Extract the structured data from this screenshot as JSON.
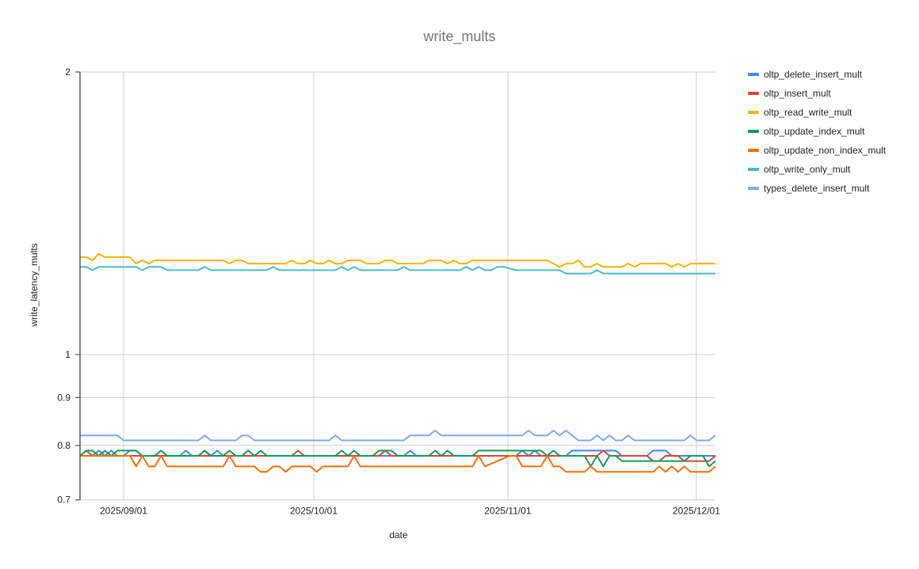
{
  "chart_data": {
    "type": "line",
    "title": "write_mults",
    "xlabel": "date",
    "ylabel": "write_latency_mults",
    "yscale": "log",
    "ylim": [
      0.7,
      2
    ],
    "yticks": [
      0.7,
      0.8,
      0.9,
      1,
      2
    ],
    "ytick_labels": [
      "0.7",
      "0.8",
      "0.9",
      "1",
      "2"
    ],
    "xticks": [
      "2025/09/01",
      "2025/10/01",
      "2025/11/01",
      "2025/12/01"
    ],
    "xrange": [
      "2025/08/25",
      "2025/12/04"
    ],
    "grid": true,
    "legend_position": "right",
    "series": [
      {
        "name": "oltp_delete_insert_mult",
        "color": "#4285f4",
        "values": [
          0.78,
          0.78,
          0.78,
          0.79,
          0.78,
          0.79,
          0.78,
          0.78,
          0.79,
          0.79,
          0.78,
          0.78,
          0.78,
          0.79,
          0.78,
          0.78,
          0.78,
          0.79,
          0.78,
          0.78,
          0.79,
          0.78,
          0.79,
          0.78,
          0.78,
          0.78,
          0.78,
          0.78,
          0.78,
          0.78,
          0.78,
          0.78,
          0.78,
          0.78,
          0.78,
          0.78,
          0.78,
          0.78,
          0.78,
          0.78,
          0.78,
          0.78,
          0.78,
          0.78,
          0.78,
          0.78,
          0.78,
          0.78,
          0.78,
          0.78,
          0.78,
          0.78,
          0.78,
          0.79,
          0.78,
          0.78,
          0.78,
          0.78,
          0.78,
          0.78,
          0.78,
          0.78,
          0.78,
          0.78,
          0.78,
          0.78,
          0.78,
          0.78,
          0.78,
          0.78,
          0.78,
          0.79,
          0.78,
          0.79,
          0.78,
          0.78,
          0.78,
          0.78,
          0.78,
          0.79,
          0.79,
          0.79,
          0.79,
          0.79,
          0.79,
          0.79,
          0.79,
          0.78,
          0.78,
          0.78,
          0.78,
          0.78,
          0.79,
          0.79,
          0.79,
          0.78,
          0.78,
          0.78,
          0.78,
          0.78,
          0.78,
          0.78,
          0.78
        ]
      },
      {
        "name": "oltp_insert_mult",
        "color": "#db4437",
        "values": [
          0.78,
          0.79,
          0.78,
          0.78,
          0.78,
          0.78,
          0.78,
          0.78,
          0.78,
          0.78,
          0.78,
          0.78,
          0.78,
          0.78,
          0.78,
          0.78,
          0.78,
          0.78,
          0.78,
          0.78,
          0.78,
          0.78,
          0.78,
          0.78,
          0.78,
          0.78,
          0.78,
          0.78,
          0.78,
          0.78,
          0.78,
          0.78,
          0.78,
          0.78,
          0.78,
          0.79,
          0.78,
          0.78,
          0.78,
          0.78,
          0.78,
          0.78,
          0.78,
          0.78,
          0.78,
          0.78,
          0.78,
          0.78,
          0.78,
          0.79,
          0.78,
          0.78,
          0.78,
          0.78,
          0.78,
          0.78,
          0.78,
          0.78,
          0.78,
          0.78,
          0.78,
          0.78,
          0.78,
          0.78,
          0.78,
          0.78,
          0.78,
          0.78,
          0.78,
          0.78,
          0.78,
          0.78,
          0.78,
          0.78,
          0.78,
          0.78,
          0.78,
          0.78,
          0.78,
          0.78,
          0.78,
          0.78,
          0.78,
          0.78,
          0.79,
          0.78,
          0.78,
          0.78,
          0.78,
          0.78,
          0.78,
          0.78,
          0.77,
          0.77,
          0.78,
          0.78,
          0.78,
          0.77,
          0.77,
          0.77,
          0.77,
          0.77,
          0.78
        ]
      },
      {
        "name": "oltp_read_write_mult",
        "color": "#f4b400",
        "values": [
          1.27,
          1.27,
          1.26,
          1.28,
          1.27,
          1.27,
          1.27,
          1.27,
          1.27,
          1.25,
          1.26,
          1.25,
          1.26,
          1.26,
          1.26,
          1.26,
          1.26,
          1.26,
          1.26,
          1.26,
          1.26,
          1.26,
          1.26,
          1.26,
          1.25,
          1.26,
          1.26,
          1.25,
          1.25,
          1.25,
          1.25,
          1.25,
          1.25,
          1.25,
          1.26,
          1.25,
          1.25,
          1.26,
          1.25,
          1.25,
          1.26,
          1.25,
          1.25,
          1.26,
          1.26,
          1.26,
          1.25,
          1.25,
          1.25,
          1.26,
          1.26,
          1.25,
          1.25,
          1.25,
          1.25,
          1.25,
          1.26,
          1.26,
          1.26,
          1.25,
          1.26,
          1.25,
          1.25,
          1.26,
          1.26,
          1.26,
          1.26,
          1.26,
          1.26,
          1.26,
          1.26,
          1.26,
          1.26,
          1.26,
          1.26,
          1.26,
          1.25,
          1.24,
          1.25,
          1.25,
          1.26,
          1.24,
          1.24,
          1.25,
          1.24,
          1.24,
          1.24,
          1.24,
          1.25,
          1.24,
          1.25,
          1.25,
          1.25,
          1.25,
          1.25,
          1.24,
          1.25,
          1.24,
          1.25,
          1.25,
          1.25,
          1.25,
          1.25
        ]
      },
      {
        "name": "oltp_update_index_mult",
        "color": "#0f9d58",
        "values": [
          0.78,
          0.79,
          0.79,
          0.78,
          0.79,
          0.78,
          0.79,
          0.79,
          0.79,
          0.79,
          0.78,
          0.78,
          0.78,
          0.79,
          0.78,
          0.78,
          0.78,
          0.78,
          0.78,
          0.78,
          0.79,
          0.78,
          0.78,
          0.78,
          0.79,
          0.78,
          0.78,
          0.79,
          0.78,
          0.79,
          0.78,
          0.78,
          0.78,
          0.78,
          0.78,
          0.78,
          0.78,
          0.78,
          0.78,
          0.78,
          0.78,
          0.78,
          0.79,
          0.78,
          0.79,
          0.78,
          0.78,
          0.78,
          0.79,
          0.79,
          0.79,
          0.78,
          0.78,
          0.78,
          0.78,
          0.78,
          0.78,
          0.79,
          0.78,
          0.79,
          0.78,
          0.78,
          0.78,
          0.78,
          0.79,
          0.79,
          0.79,
          0.79,
          0.79,
          0.79,
          0.79,
          0.79,
          0.79,
          0.79,
          0.79,
          0.78,
          0.79,
          0.78,
          0.78,
          0.78,
          0.78,
          0.78,
          0.76,
          0.78,
          0.76,
          0.78,
          0.78,
          0.77,
          0.77,
          0.77,
          0.77,
          0.77,
          0.77,
          0.77,
          0.77,
          0.77,
          0.77,
          0.77,
          0.78,
          0.78,
          0.78,
          0.76,
          0.77
        ]
      },
      {
        "name": "oltp_update_non_index_mult",
        "color": "#ff6d01",
        "values": [
          0.78,
          0.78,
          0.78,
          0.78,
          0.78,
          0.78,
          0.78,
          0.78,
          0.78,
          0.76,
          0.78,
          0.76,
          0.76,
          0.78,
          0.76,
          0.76,
          0.76,
          0.76,
          0.76,
          0.76,
          0.76,
          0.76,
          0.76,
          0.76,
          0.78,
          0.76,
          0.76,
          0.76,
          0.76,
          0.75,
          0.75,
          0.76,
          0.76,
          0.75,
          0.76,
          0.76,
          0.76,
          0.76,
          0.75,
          0.76,
          0.76,
          0.76,
          0.76,
          0.76,
          0.78,
          0.76,
          0.76,
          0.76,
          0.76,
          0.76,
          0.76,
          0.76,
          0.76,
          0.76,
          0.76,
          0.76,
          0.76,
          0.76,
          0.76,
          0.76,
          0.76,
          0.76,
          0.76,
          0.76,
          0.78,
          0.76,
          0.765,
          0.77,
          0.775,
          0.78,
          0.78,
          0.76,
          0.76,
          0.76,
          0.76,
          0.78,
          0.76,
          0.76,
          0.75,
          0.75,
          0.75,
          0.75,
          0.76,
          0.75,
          0.75,
          0.75,
          0.75,
          0.75,
          0.75,
          0.75,
          0.75,
          0.75,
          0.75,
          0.76,
          0.75,
          0.76,
          0.75,
          0.76,
          0.75,
          0.75,
          0.75,
          0.75,
          0.76
        ]
      },
      {
        "name": "oltp_write_only_mult",
        "color": "#46bdc6",
        "values": [
          1.24,
          1.24,
          1.23,
          1.24,
          1.24,
          1.24,
          1.24,
          1.24,
          1.24,
          1.24,
          1.23,
          1.24,
          1.24,
          1.24,
          1.23,
          1.23,
          1.23,
          1.23,
          1.23,
          1.23,
          1.24,
          1.23,
          1.23,
          1.23,
          1.23,
          1.23,
          1.23,
          1.23,
          1.23,
          1.23,
          1.23,
          1.24,
          1.23,
          1.23,
          1.23,
          1.23,
          1.23,
          1.23,
          1.23,
          1.23,
          1.23,
          1.23,
          1.24,
          1.23,
          1.24,
          1.23,
          1.23,
          1.23,
          1.23,
          1.23,
          1.23,
          1.23,
          1.24,
          1.23,
          1.23,
          1.23,
          1.23,
          1.23,
          1.23,
          1.23,
          1.23,
          1.23,
          1.24,
          1.23,
          1.24,
          1.23,
          1.23,
          1.24,
          1.24,
          1.235,
          1.23,
          1.23,
          1.23,
          1.23,
          1.23,
          1.23,
          1.23,
          1.23,
          1.22,
          1.22,
          1.22,
          1.22,
          1.22,
          1.23,
          1.22,
          1.22,
          1.22,
          1.22,
          1.22,
          1.22,
          1.22,
          1.22,
          1.22,
          1.22,
          1.22,
          1.22,
          1.22,
          1.22,
          1.22,
          1.22,
          1.22,
          1.22,
          1.22
        ]
      },
      {
        "name": "types_delete_insert_mult",
        "color": "#7baaf7",
        "values": [
          0.82,
          0.82,
          0.82,
          0.82,
          0.82,
          0.82,
          0.82,
          0.81,
          0.81,
          0.81,
          0.81,
          0.81,
          0.81,
          0.81,
          0.81,
          0.81,
          0.81,
          0.81,
          0.81,
          0.81,
          0.82,
          0.81,
          0.81,
          0.81,
          0.81,
          0.81,
          0.82,
          0.82,
          0.81,
          0.81,
          0.81,
          0.81,
          0.81,
          0.81,
          0.81,
          0.81,
          0.81,
          0.81,
          0.81,
          0.81,
          0.81,
          0.82,
          0.81,
          0.81,
          0.81,
          0.81,
          0.81,
          0.81,
          0.81,
          0.81,
          0.81,
          0.81,
          0.81,
          0.82,
          0.82,
          0.82,
          0.82,
          0.83,
          0.82,
          0.82,
          0.82,
          0.82,
          0.82,
          0.82,
          0.82,
          0.82,
          0.82,
          0.82,
          0.82,
          0.82,
          0.82,
          0.82,
          0.83,
          0.82,
          0.82,
          0.82,
          0.83,
          0.82,
          0.83,
          0.82,
          0.81,
          0.81,
          0.81,
          0.82,
          0.81,
          0.82,
          0.81,
          0.81,
          0.82,
          0.81,
          0.81,
          0.81,
          0.81,
          0.81,
          0.81,
          0.81,
          0.81,
          0.81,
          0.82,
          0.81,
          0.81,
          0.81,
          0.82
        ]
      }
    ]
  },
  "legend": {
    "items": [
      {
        "label": "oltp_delete_insert_mult",
        "color": "#4285f4"
      },
      {
        "label": "oltp_insert_mult",
        "color": "#db4437"
      },
      {
        "label": "oltp_read_write_mult",
        "color": "#f4b400"
      },
      {
        "label": "oltp_update_index_mult",
        "color": "#0f9d58"
      },
      {
        "label": "oltp_update_non_index_mult",
        "color": "#ff6d01"
      },
      {
        "label": "oltp_write_only_mult",
        "color": "#46bdc6"
      },
      {
        "label": "types_delete_insert_mult",
        "color": "#7baaf7"
      }
    ]
  }
}
